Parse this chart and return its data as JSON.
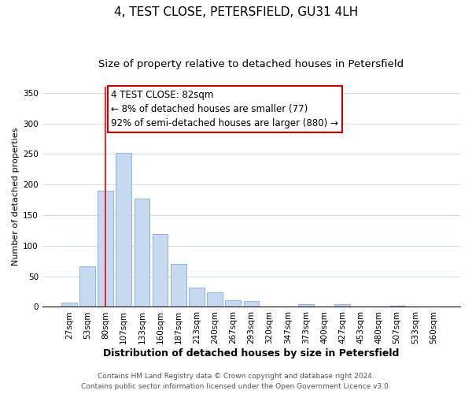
{
  "title": "4, TEST CLOSE, PETERSFIELD, GU31 4LH",
  "subtitle": "Size of property relative to detached houses in Petersfield",
  "xlabel": "Distribution of detached houses by size in Petersfield",
  "ylabel": "Number of detached properties",
  "bar_labels": [
    "27sqm",
    "53sqm",
    "80sqm",
    "107sqm",
    "133sqm",
    "160sqm",
    "187sqm",
    "213sqm",
    "240sqm",
    "267sqm",
    "293sqm",
    "320sqm",
    "347sqm",
    "373sqm",
    "400sqm",
    "427sqm",
    "453sqm",
    "480sqm",
    "507sqm",
    "533sqm",
    "560sqm"
  ],
  "bar_values": [
    7,
    66,
    190,
    252,
    177,
    119,
    70,
    31,
    24,
    11,
    9,
    0,
    0,
    4,
    0,
    5,
    0,
    0,
    2,
    0,
    1
  ],
  "bar_color": "#c5d9f1",
  "bar_edge_color": "#8eb4e3",
  "vline_x": 2,
  "vline_color": "#ff0000",
  "annotation_lines": [
    "4 TEST CLOSE: 82sqm",
    "← 8% of detached houses are smaller (77)",
    "92% of semi-detached houses are larger (880) →"
  ],
  "ylim": [
    0,
    360
  ],
  "yticks": [
    0,
    50,
    100,
    150,
    200,
    250,
    300,
    350
  ],
  "footer_line1": "Contains HM Land Registry data © Crown copyright and database right 2024.",
  "footer_line2": "Contains public sector information licensed under the Open Government Licence v3.0.",
  "title_fontsize": 11,
  "subtitle_fontsize": 9.5,
  "xlabel_fontsize": 9,
  "ylabel_fontsize": 8,
  "tick_fontsize": 7.5,
  "footer_fontsize": 6.5,
  "annotation_fontsize": 8.5
}
